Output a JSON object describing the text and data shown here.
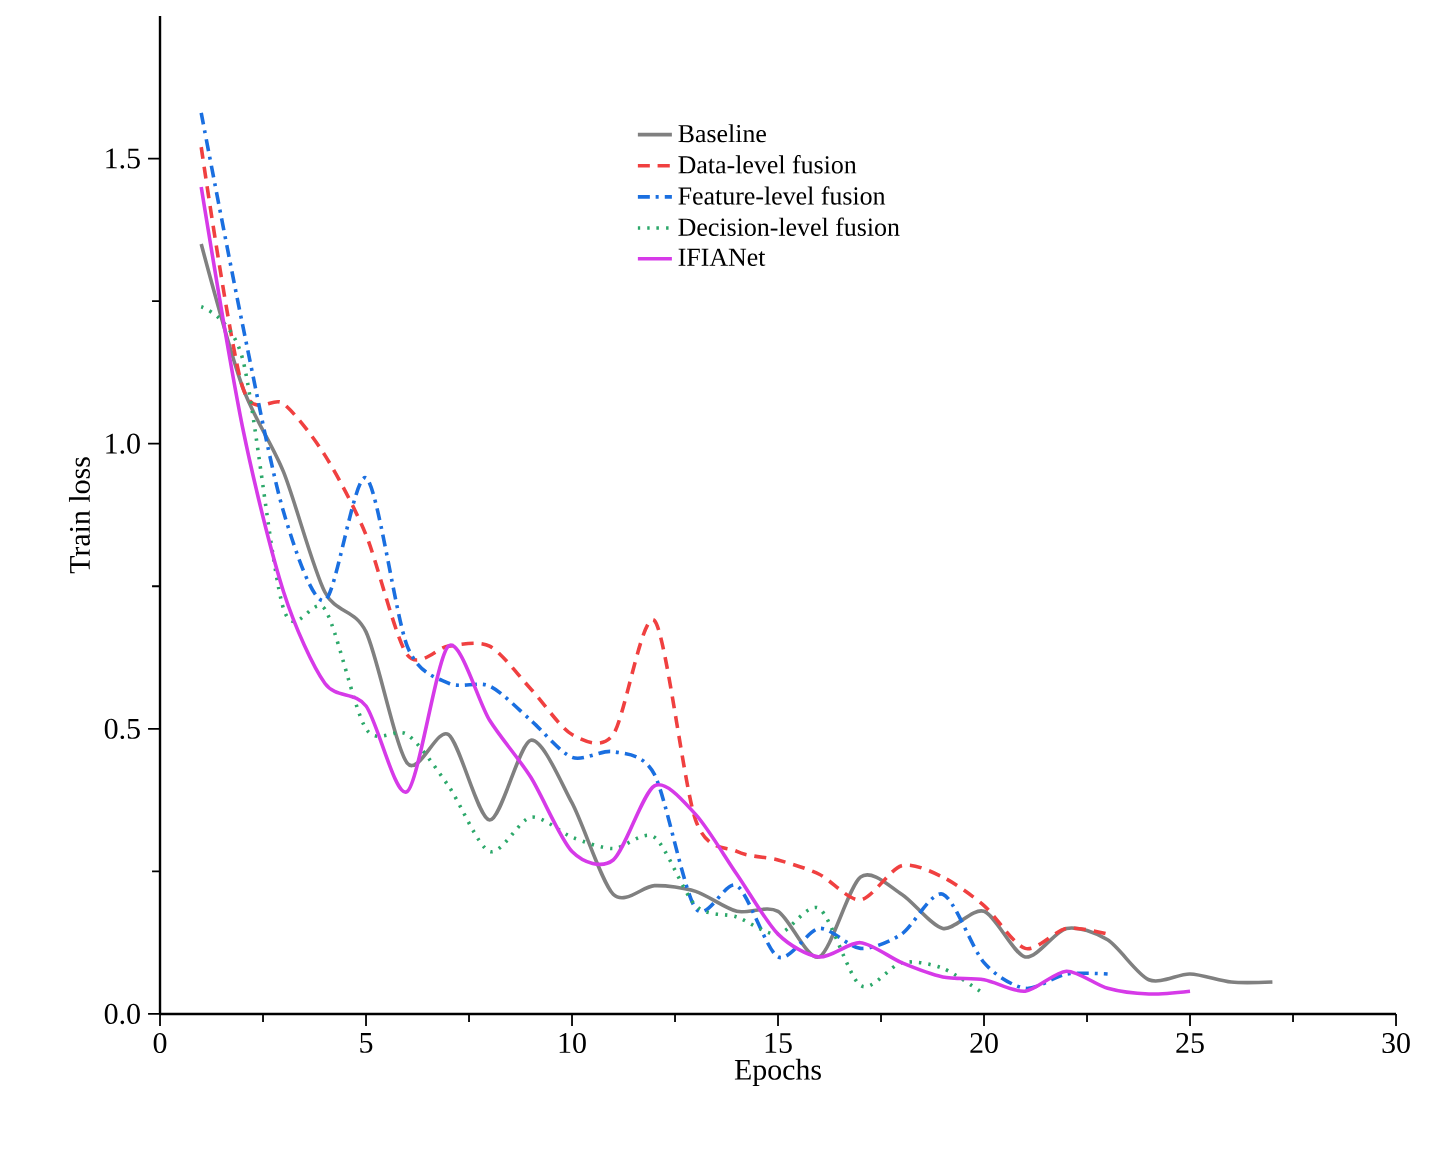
{
  "chart_data": {
    "type": "line",
    "xlabel": "Epochs",
    "ylabel": "Train loss",
    "x": [
      1,
      2,
      3,
      4,
      5,
      6,
      7,
      8,
      9,
      10,
      11,
      12,
      13,
      14,
      15,
      16,
      17,
      18,
      19,
      20,
      21,
      22,
      23,
      24,
      25,
      26,
      27
    ],
    "series": [
      {
        "name": "Baseline",
        "color": "#808080",
        "line_style": "solid",
        "values": [
          1.35,
          1.1,
          0.95,
          0.74,
          0.67,
          0.44,
          0.49,
          0.34,
          0.48,
          0.37,
          0.21,
          0.225,
          0.215,
          0.18,
          0.18,
          0.1,
          0.24,
          0.21,
          0.15,
          0.18,
          0.1,
          0.15,
          0.13,
          0.06,
          0.07,
          0.056,
          0.056
        ]
      },
      {
        "name": "Data-level fusion",
        "color": "#f04040",
        "line_style": "dashed",
        "values": [
          1.52,
          1.1,
          1.07,
          0.98,
          0.84,
          0.63,
          0.645,
          0.645,
          0.57,
          0.49,
          0.49,
          0.69,
          0.34,
          0.285,
          0.27,
          0.245,
          0.2,
          0.26,
          0.24,
          0.19,
          0.115,
          0.15,
          0.14,
          null,
          null,
          null,
          null
        ]
      },
      {
        "name": "Feature-level fusion",
        "color": "#1a6fe0",
        "line_style": "dashdot",
        "values": [
          1.58,
          1.21,
          0.88,
          0.725,
          0.94,
          0.645,
          0.58,
          0.575,
          0.515,
          0.45,
          0.46,
          0.42,
          0.185,
          0.225,
          0.1,
          0.15,
          0.115,
          0.14,
          0.21,
          0.09,
          0.045,
          0.07,
          0.07,
          null,
          null,
          null,
          null
        ]
      },
      {
        "name": "Decision-level fusion",
        "color": "#2ca86a",
        "line_style": "dotted",
        "values": [
          1.24,
          1.15,
          0.71,
          0.71,
          0.5,
          0.49,
          0.4,
          0.285,
          0.345,
          0.31,
          0.29,
          0.31,
          0.19,
          0.17,
          0.14,
          0.185,
          0.05,
          0.09,
          0.08,
          0.035,
          null,
          null,
          null,
          null,
          null,
          null,
          null
        ]
      },
      {
        "name": "IFIANet",
        "color": "#d63ae8",
        "line_style": "solid",
        "values": [
          1.45,
          1.03,
          0.74,
          0.58,
          0.54,
          0.39,
          0.645,
          0.515,
          0.415,
          0.285,
          0.27,
          0.4,
          0.35,
          0.245,
          0.14,
          0.1,
          0.125,
          0.09,
          0.065,
          0.06,
          0.04,
          0.075,
          0.045,
          0.035,
          0.04,
          null,
          null
        ]
      }
    ],
    "xlim": [
      0,
      30
    ],
    "xticks": [
      0,
      5,
      10,
      15,
      20,
      25,
      30
    ],
    "ylim": [
      0,
      1.75
    ],
    "yticks": [
      {
        "value": 0,
        "label": "0.0"
      },
      {
        "value": 0.5,
        "label": "0.5"
      },
      {
        "value": 1.0,
        "label": "1.0"
      },
      {
        "value": 1.5,
        "label": "1.5"
      }
    ],
    "grid": false,
    "legend": "top",
    "marker": "none"
  }
}
